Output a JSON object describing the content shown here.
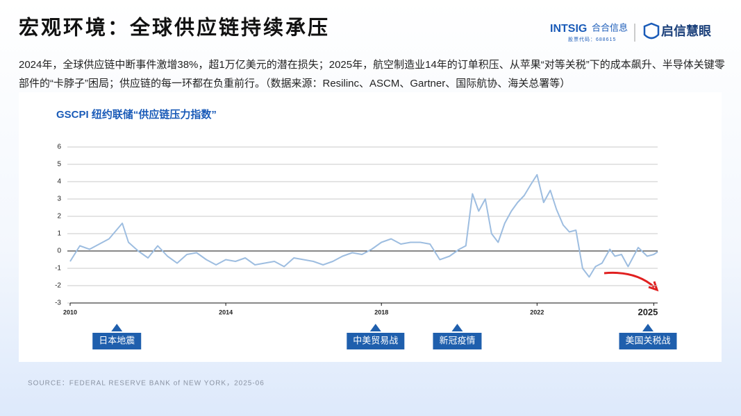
{
  "header": {
    "title": "宏观环境：全球供应链持续承压",
    "brand": "INTSIG",
    "brand_cn": "合合信息",
    "stock_code": "股票代码：688615",
    "product": "启信慧眼"
  },
  "paragraph": "2024年，全球供应链中断事件激增38%，超1万亿美元的潜在损失；2025年，航空制造业14年的订单积压、从苹果“对等关税”下的成本飙升、半导体关键零部件的“卡脖子”困局；供应链的每一环都在负重前行。（数据来源：Resilinc、ASCM、Gartner、国际航协、海关总署等）",
  "source": "SOURCE：FEDERAL RESERVE BANK of NEW YORK，2025-06",
  "chart_data": {
    "type": "line",
    "title": "GSCPI 纽约联储“供应链压力指数”",
    "x": [
      2010,
      2010.25,
      2010.5,
      2010.75,
      2011,
      2011.34,
      2011.5,
      2011.75,
      2012,
      2012.25,
      2012.5,
      2012.75,
      2013,
      2013.25,
      2013.5,
      2013.75,
      2014,
      2014.25,
      2014.5,
      2014.75,
      2015,
      2015.25,
      2015.5,
      2015.75,
      2016,
      2016.25,
      2016.5,
      2016.75,
      2017,
      2017.25,
      2017.5,
      2017.75,
      2018,
      2018.25,
      2018.5,
      2018.75,
      2019,
      2019.25,
      2019.5,
      2019.75,
      2020,
      2020.17,
      2020.34,
      2020.5,
      2020.67,
      2020.83,
      2021,
      2021.17,
      2021.34,
      2021.5,
      2021.67,
      2021.83,
      2022,
      2022.17,
      2022.34,
      2022.5,
      2022.67,
      2022.83,
      2023,
      2023.17,
      2023.34,
      2023.5,
      2023.67,
      2023.87,
      2024,
      2024.17,
      2024.34,
      2024.6,
      2024.83,
      2025,
      2025.1
    ],
    "series": [
      {
        "name": "GSCPI",
        "color": "#9dbde0",
        "values": [
          -0.6,
          0.3,
          0.1,
          0.4,
          0.7,
          1.6,
          0.5,
          0.0,
          -0.4,
          0.3,
          -0.3,
          -0.7,
          -0.2,
          -0.1,
          -0.5,
          -0.8,
          -0.5,
          -0.6,
          -0.4,
          -0.8,
          -0.7,
          -0.6,
          -0.9,
          -0.4,
          -0.5,
          -0.6,
          -0.8,
          -0.6,
          -0.3,
          -0.1,
          -0.2,
          0.1,
          0.5,
          0.7,
          0.4,
          0.5,
          0.5,
          0.4,
          -0.5,
          -0.3,
          0.1,
          0.3,
          3.3,
          2.3,
          3.0,
          1.0,
          0.5,
          1.6,
          2.3,
          2.8,
          3.2,
          3.8,
          4.4,
          2.8,
          3.5,
          2.4,
          1.5,
          1.1,
          1.2,
          -1.0,
          -1.5,
          -0.9,
          -0.7,
          0.1,
          -0.3,
          -0.2,
          -0.9,
          0.2,
          -0.3,
          -0.2,
          -0.05
        ]
      }
    ],
    "xlim": [
      2010,
      2025.1
    ],
    "xticks": [
      2010,
      2014,
      2018,
      2022,
      2025
    ],
    "ylim": [
      -3,
      6
    ],
    "yticks": [
      -3,
      -2,
      -1,
      0,
      1,
      2,
      3,
      4,
      5,
      6
    ],
    "grid": true,
    "annotations": [
      {
        "text": "日本地震",
        "x": 2011.2
      },
      {
        "text": "中美贸易战",
        "x": 2017.85
      },
      {
        "text": "新冠疫情",
        "x": 2019.95
      },
      {
        "text": "美国关税战",
        "x": 2024.85
      }
    ]
  }
}
